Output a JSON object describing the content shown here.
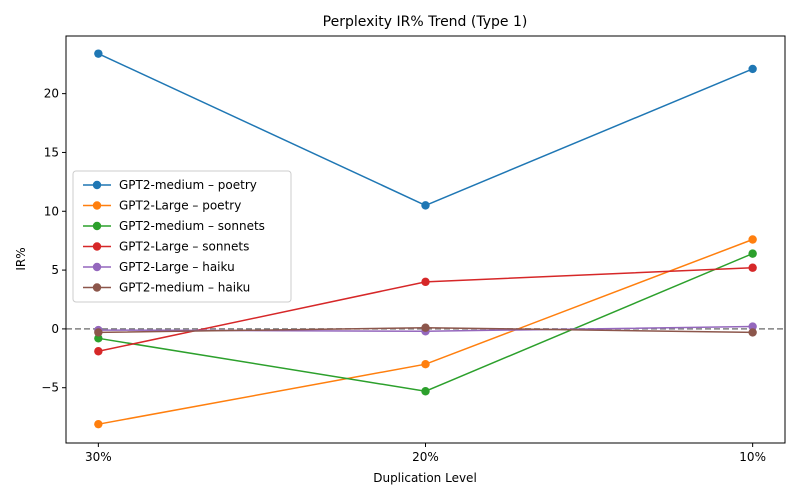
{
  "chart_data": {
    "type": "line",
    "title": "Perplexity IR% Trend (Type 1)",
    "xlabel": "Duplication Level",
    "ylabel": "IR%",
    "categories": [
      "30%",
      "20%",
      "10%"
    ],
    "ylim": [
      -9.7,
      24.9
    ],
    "yticks": [
      -5,
      0,
      5,
      10,
      15,
      20
    ],
    "reference_line": {
      "y": 0,
      "style": "dashed",
      "color": "#808080"
    },
    "grid": false,
    "legend_position": "center-left",
    "series": [
      {
        "name": "GPT2-medium – poetry",
        "color": "#1f77b4",
        "values": [
          23.4,
          10.5,
          22.1
        ]
      },
      {
        "name": "GPT2-Large – poetry",
        "color": "#ff7f0e",
        "values": [
          -8.1,
          -3.0,
          7.6
        ]
      },
      {
        "name": "GPT2-medium – sonnets",
        "color": "#2ca02c",
        "values": [
          -0.8,
          -5.3,
          6.4
        ]
      },
      {
        "name": "GPT2-Large – sonnets",
        "color": "#d62728",
        "values": [
          -1.9,
          4.0,
          5.2
        ]
      },
      {
        "name": "GPT2-Large – haiku",
        "color": "#9467bd",
        "values": [
          -0.1,
          -0.2,
          0.2
        ]
      },
      {
        "name": "GPT2-medium – haiku",
        "color": "#8c564b",
        "values": [
          -0.3,
          0.1,
          -0.3
        ]
      }
    ]
  }
}
